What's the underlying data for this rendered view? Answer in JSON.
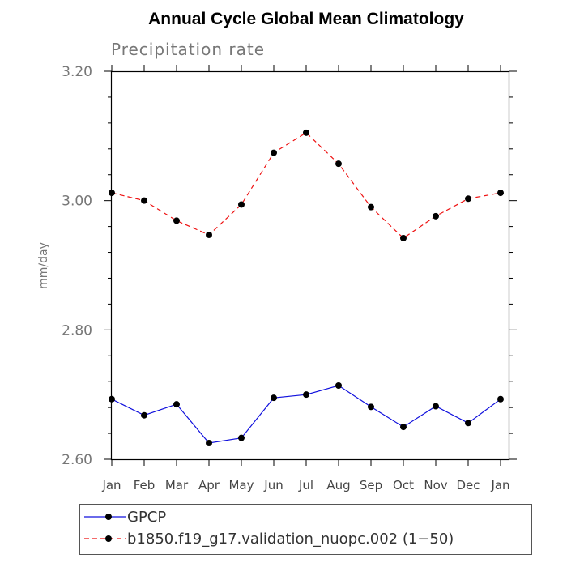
{
  "chart_data": {
    "type": "line",
    "title": "Annual Cycle Global Mean Climatology",
    "subtitle": "Precipitation rate",
    "ylabel": "mm/day",
    "xlabel": "",
    "categories": [
      "Jan",
      "Feb",
      "Mar",
      "Apr",
      "May",
      "Jun",
      "Jul",
      "Aug",
      "Sep",
      "Oct",
      "Nov",
      "Dec",
      "Jan"
    ],
    "ylim": [
      2.6,
      3.2
    ],
    "yticks": [
      "2.60",
      "2.80",
      "3.00",
      "3.20"
    ],
    "y_minor_step": 0.04,
    "series": [
      {
        "name": "GPCP",
        "color": "#1010dd",
        "dash": "solid",
        "values": [
          2.693,
          2.668,
          2.685,
          2.625,
          2.633,
          2.695,
          2.7,
          2.714,
          2.681,
          2.65,
          2.682,
          2.656,
          2.693
        ]
      },
      {
        "name": "b1850.f19_g17.validation_nuopc.002 (1−50)",
        "color": "#ee1111",
        "dash": "dashed",
        "values": [
          3.012,
          3.0,
          2.969,
          2.947,
          2.994,
          3.074,
          3.105,
          3.057,
          2.99,
          2.942,
          2.976,
          3.003,
          3.012
        ]
      }
    ],
    "marker_color": "#000000",
    "legend_position": "bottom"
  }
}
